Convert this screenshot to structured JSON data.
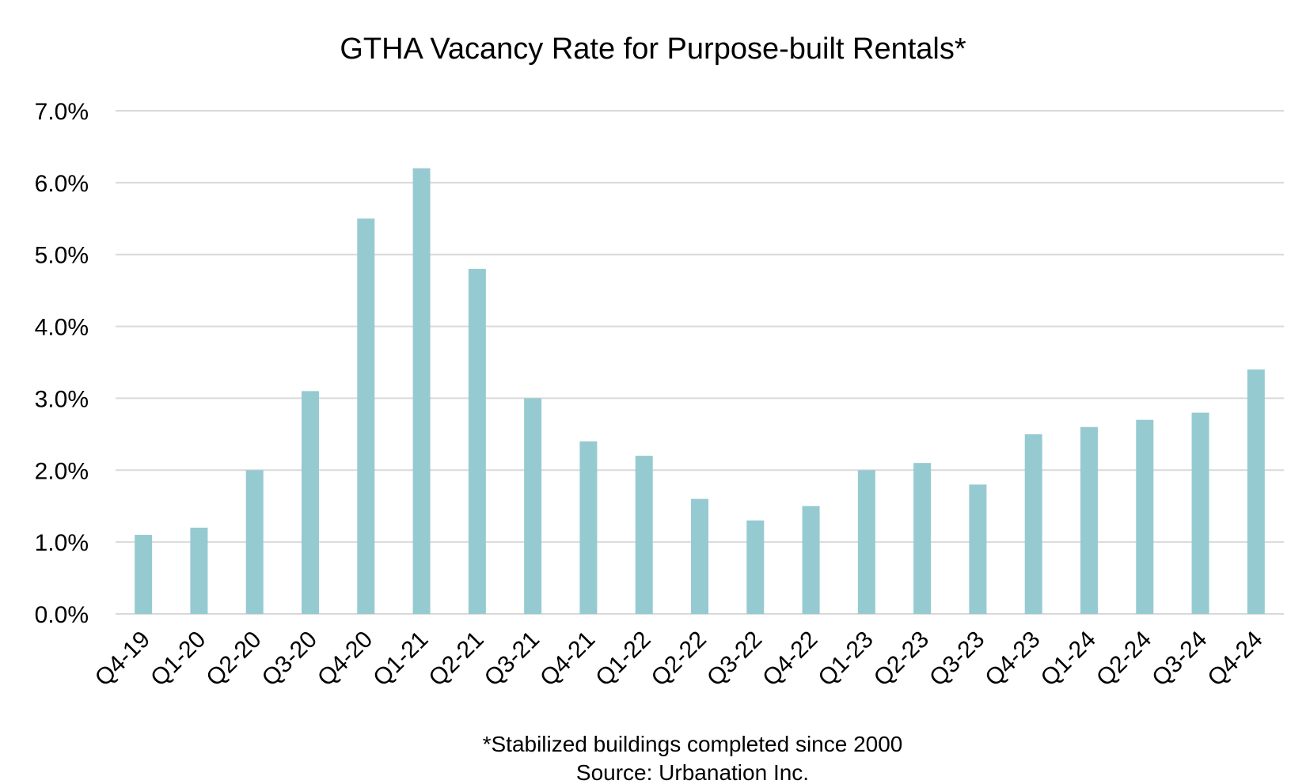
{
  "chart_data": {
    "type": "bar",
    "title": "GTHA Vacancy Rate for Purpose-built Rentals*",
    "xlabel": "",
    "ylabel": "",
    "categories": [
      "Q4-19",
      "Q1-20",
      "Q2-20",
      "Q3-20",
      "Q4-20",
      "Q1-21",
      "Q2-21",
      "Q3-21",
      "Q4-21",
      "Q1-22",
      "Q2-22",
      "Q3-22",
      "Q4-22",
      "Q1-23",
      "Q2-23",
      "Q3-23",
      "Q4-23",
      "Q1-24",
      "Q2-24",
      "Q3-24",
      "Q4-24"
    ],
    "values": [
      1.1,
      1.2,
      2.0,
      3.1,
      5.5,
      6.2,
      4.8,
      3.0,
      2.4,
      2.2,
      1.6,
      1.3,
      1.5,
      2.0,
      2.1,
      1.8,
      2.5,
      2.6,
      2.7,
      2.8,
      3.4
    ],
    "ylim": [
      0,
      7
    ],
    "yticks": [
      0,
      1,
      2,
      3,
      4,
      5,
      6,
      7
    ],
    "ytick_labels": [
      "0.0%",
      "1.0%",
      "2.0%",
      "3.0%",
      "4.0%",
      "5.0%",
      "6.0%",
      "7.0%"
    ],
    "grid": true,
    "legend": "none",
    "bar_color": "#96cad1"
  },
  "footnote": "*Stabilized buildings completed since 2000",
  "source": "Source: Urbanation Inc."
}
